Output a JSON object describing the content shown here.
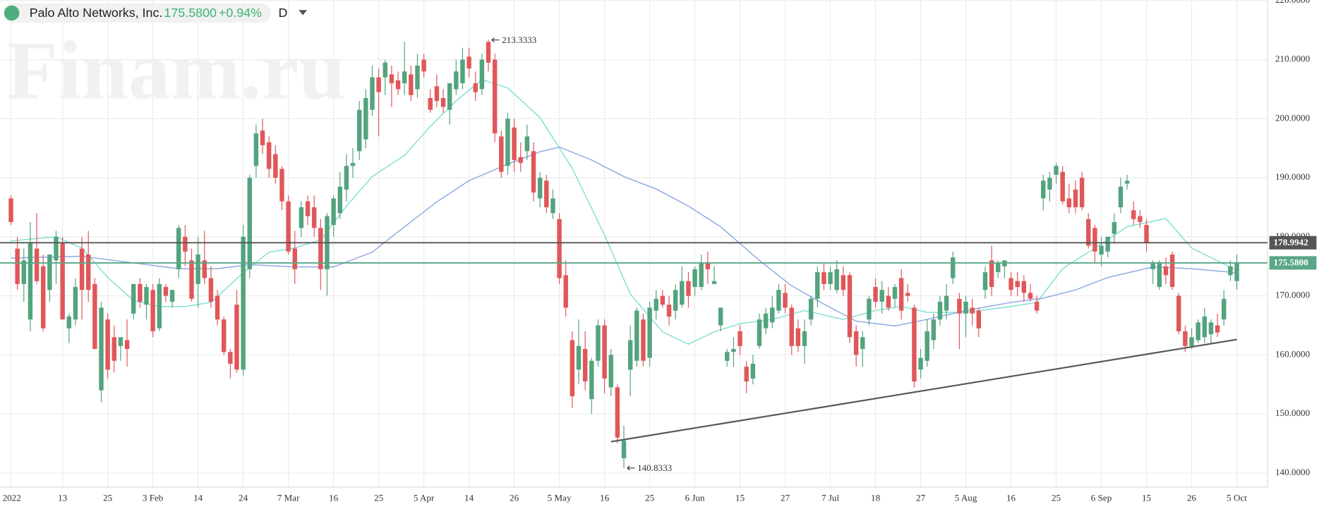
{
  "header": {
    "instrument": "Palo Alto Networks, Inc.",
    "price": "175.5800",
    "change": "+0.94%",
    "interval": "D"
  },
  "watermark": "Finam.ru",
  "chart_data": {
    "type": "candlestick",
    "up_color": "#53a37e",
    "down_color": "#e0575a",
    "categories": [
      "2022",
      null,
      null,
      null,
      null,
      null,
      null,
      null,
      "13",
      null,
      null,
      null,
      null,
      null,
      null,
      "25",
      null,
      null,
      null,
      null,
      null,
      null,
      "3 Feb",
      null,
      null,
      null,
      null,
      null,
      null,
      "14",
      null,
      null,
      null,
      null,
      null,
      null,
      "24",
      null,
      null,
      null,
      null,
      null,
      null,
      "7 Mar",
      null,
      null,
      null,
      null,
      null,
      null,
      "16",
      null,
      null,
      null,
      null,
      null,
      null,
      "25",
      null,
      null,
      null,
      null,
      null,
      null,
      "5 Apr",
      null,
      null,
      null,
      null,
      null,
      null,
      "14",
      null,
      null,
      null,
      null,
      null,
      null,
      "26",
      null,
      null,
      null,
      null,
      null,
      null,
      "5 May",
      null,
      null,
      null,
      null,
      null,
      null,
      "16",
      null,
      null,
      null,
      null,
      null,
      null,
      "25",
      null,
      null,
      null,
      null,
      null,
      null,
      "6 Jun",
      null,
      null,
      null,
      null,
      null,
      null,
      "15",
      null,
      null,
      null,
      null,
      null,
      null,
      "27",
      null,
      null,
      null,
      null,
      null,
      null,
      "7 Jul",
      null,
      null,
      null,
      null,
      null,
      null,
      "18",
      null,
      null,
      null,
      null,
      null,
      null,
      "27",
      null,
      null,
      null,
      null,
      null,
      null,
      "5 Aug",
      null,
      null,
      null,
      null,
      null,
      null,
      "16",
      null,
      null,
      null,
      null,
      null,
      null,
      "25",
      null,
      null,
      null,
      null,
      null,
      null,
      "6 Sep",
      null,
      null,
      null,
      null,
      null,
      null,
      "15",
      null,
      null,
      null,
      null,
      null,
      null,
      "26",
      null,
      null,
      null,
      null,
      null,
      null,
      "5 Oct"
    ],
    "open": [
      186.5,
      178,
      172,
      166,
      178,
      175,
      171,
      176,
      179,
      164.5,
      166,
      178,
      177,
      172,
      154,
      166,
      163,
      161.5,
      162.5,
      167,
      172,
      168.5,
      171,
      164.5,
      171.5,
      169,
      174.5,
      180,
      176,
      172,
      176,
      173,
      170,
      166,
      160.5,
      168.5,
      157.5,
      174.5,
      192,
      198,
      196,
      194,
      191.5,
      186,
      178,
      181.5,
      186,
      185,
      181.5,
      174.5,
      182,
      184,
      188,
      192,
      194.5,
      196.5,
      201.5,
      207,
      207,
      207.5,
      206.5,
      206,
      207.5,
      205,
      210,
      203.5,
      205.5,
      203.5,
      201.5,
      205,
      206,
      210.5,
      206,
      205,
      213,
      210,
      197,
      192,
      198.5,
      193.5,
      194.5,
      194.5,
      186.5,
      189.5,
      184,
      183,
      173.5,
      162.5,
      157.5,
      161,
      152.5,
      159,
      165,
      154.5,
      154.5,
      142.5,
      157.5,
      159,
      166,
      159.5,
      167.5,
      170,
      168.5,
      167.5,
      168.5,
      172.5,
      171.5,
      171.5,
      175.5,
      172,
      165,
      159,
      160.5,
      164,
      158,
      156,
      161.5,
      164.5,
      165.5,
      167.5,
      170.5,
      168,
      164.5,
      161.5,
      166,
      169.5,
      174,
      172,
      171,
      173.5,
      173.5,
      164,
      161,
      166,
      171.5,
      169,
      170,
      169.5,
      173,
      170.5,
      168,
      157.5,
      159,
      162.5,
      166,
      167.5,
      173,
      169.5,
      167,
      168,
      167.5,
      171,
      176,
      174,
      175,
      173,
      172.5,
      172.5,
      170.5,
      169,
      186.5,
      188,
      190.5,
      191,
      186.5,
      188,
      190,
      183,
      181.5,
      177,
      177.5,
      180.5,
      185,
      189,
      184.5,
      183.5,
      182,
      174.5,
      171.5,
      175,
      177,
      170,
      164,
      161.5,
      162.5,
      163,
      163.5,
      165,
      166,
      173.5,
      172.5
    ],
    "high": [
      187,
      180,
      178,
      182.5,
      184,
      177,
      177,
      181,
      180,
      167,
      173,
      180,
      181,
      173,
      169,
      167,
      165,
      163,
      166,
      172,
      173,
      172,
      172,
      173,
      172,
      171,
      182,
      182,
      178,
      180,
      181,
      175,
      171,
      166.5,
      161,
      171,
      182,
      190.5,
      199,
      200,
      197,
      195.5,
      192,
      187,
      181,
      186,
      187,
      187,
      183,
      184,
      187,
      191,
      194,
      195,
      203,
      205,
      209,
      208.5,
      210,
      209,
      208,
      213,
      209,
      211,
      211,
      205,
      207.5,
      205,
      206,
      210,
      212,
      212,
      208,
      211,
      213.3333,
      211,
      198,
      201,
      200,
      196,
      199,
      196,
      191,
      190.5,
      188,
      184,
      176,
      164,
      166,
      164,
      159.5,
      166,
      166,
      161,
      155,
      148,
      165,
      168,
      167,
      169,
      171,
      171,
      170,
      172,
      175,
      174,
      175,
      177,
      177.5,
      175,
      168,
      161,
      163,
      165,
      159,
      160,
      167,
      168,
      170,
      172,
      172,
      168.5,
      166,
      166,
      170,
      175,
      175.5,
      175,
      176,
      175,
      174,
      165,
      164,
      170,
      173,
      172.5,
      171.5,
      172,
      174.5,
      172,
      168.5,
      161,
      166,
      167,
      170,
      172,
      177.5,
      170.5,
      170,
      169.5,
      168,
      175,
      178.5,
      176,
      176,
      174,
      174,
      173.5,
      172,
      170,
      190.5,
      191,
      192.5,
      192,
      189,
      189.5,
      191,
      184,
      182,
      180,
      180,
      184,
      190,
      190.5,
      186,
      184.5,
      183,
      176,
      176,
      176.5,
      177.5,
      170.5,
      165,
      164.5,
      166,
      168,
      166,
      167,
      171,
      176,
      177
    ],
    "low": [
      182,
      171,
      169,
      164,
      172,
      164,
      169,
      172,
      166,
      162,
      165,
      166,
      169,
      161,
      152,
      156,
      157,
      159,
      158,
      166,
      168,
      166,
      163,
      164,
      169,
      168,
      173,
      175,
      169,
      168,
      172,
      168,
      165,
      160,
      156,
      157,
      156.5,
      173,
      190,
      194,
      190,
      189,
      184.5,
      177,
      172,
      180,
      182,
      180,
      171,
      170,
      180,
      183,
      186,
      190,
      193,
      195,
      200.5,
      197,
      204,
      202,
      204,
      204,
      203,
      203.5,
      207,
      201,
      202,
      201,
      199,
      204,
      205,
      207,
      203,
      204,
      208,
      196,
      190,
      190.5,
      191,
      191,
      193,
      186,
      185,
      184,
      183,
      172,
      166.5,
      151,
      155,
      154,
      150,
      158,
      153.5,
      153,
      145,
      140.8333,
      153,
      158,
      158,
      158,
      166,
      168,
      165,
      166,
      168,
      168,
      170,
      171,
      172,
      172,
      164,
      158,
      158,
      160,
      153.5,
      155,
      161,
      163.5,
      164.5,
      167,
      167,
      160,
      160.5,
      158.5,
      165,
      168,
      171,
      171,
      170.5,
      170,
      162,
      158,
      158,
      165,
      168,
      167,
      167.5,
      168,
      166,
      169,
      154.5,
      156,
      158,
      161,
      165,
      166,
      172,
      161,
      163,
      165,
      163,
      169.5,
      170,
      173,
      173,
      170,
      170,
      169,
      169,
      167,
      184.5,
      186,
      189,
      185.5,
      184,
      184,
      184.5,
      178,
      175.5,
      175,
      176.5,
      179,
      184,
      188,
      182,
      181.5,
      177.5,
      172,
      171,
      172,
      171,
      163.5,
      160.5,
      161,
      162,
      162,
      162,
      163,
      165,
      172.5,
      171
    ],
    "close": [
      182.5,
      172,
      176,
      179,
      172.5,
      164.5,
      177,
      180,
      166,
      166.5,
      171.5,
      171,
      171,
      161,
      168,
      157.5,
      159,
      163,
      161,
      172,
      169,
      171.5,
      164,
      172,
      170,
      171,
      181.5,
      177.5,
      169.5,
      177,
      173,
      169,
      166,
      160.5,
      158.5,
      157.5,
      180,
      190,
      197.5,
      195.5,
      191.5,
      190,
      186,
      177.5,
      174.5,
      185,
      183.5,
      181.5,
      174.5,
      183.5,
      186.5,
      188.5,
      192,
      192.5,
      201.5,
      203.5,
      207,
      204.5,
      209.5,
      206,
      205,
      208,
      204,
      209,
      208,
      201.5,
      203,
      202,
      206,
      208,
      210,
      208.5,
      204.5,
      210,
      209.5,
      197.5,
      191,
      200,
      193,
      192.5,
      197,
      187.5,
      190,
      185,
      186.5,
      173,
      168,
      153,
      161.5,
      155.5,
      159,
      165,
      156,
      160,
      146,
      145.5,
      162.5,
      167.5,
      159,
      168,
      169.5,
      168.5,
      166.5,
      171,
      172.5,
      170,
      174.5,
      175.5,
      174.5,
      172.5,
      168,
      160.5,
      161,
      161.5,
      155.5,
      158.5,
      166,
      167,
      168,
      171,
      168,
      161.5,
      161.5,
      164,
      169.5,
      174,
      172,
      174,
      174.5,
      171,
      163,
      160,
      163,
      169.5,
      169,
      171,
      168,
      171.5,
      167.5,
      170,
      155.5,
      159.5,
      164,
      166,
      169,
      170,
      176.5,
      167,
      169,
      167,
      164.5,
      174,
      171.5,
      175.5,
      176,
      171,
      171.5,
      170.5,
      169.5,
      167.5,
      189.5,
      190,
      192,
      186,
      185,
      185,
      185,
      178.5,
      177.5,
      178.5,
      180,
      182.5,
      188.5,
      189.5,
      183,
      182.5,
      179,
      175.5,
      175.5,
      173.5,
      171.5,
      164,
      161.5,
      163,
      165.5,
      166.5,
      165.5,
      163.8,
      169.5,
      175,
      175.58
    ],
    "moving_averages": [
      {
        "color": "#7fdfd0",
        "x": [
          0,
          7,
          11,
          15,
          19,
          23,
          27,
          31,
          36,
          40,
          44,
          48,
          52,
          56,
          61,
          65,
          69,
          73,
          77,
          82,
          87,
          92,
          96,
          101,
          105,
          109,
          113,
          118,
          123,
          129,
          134,
          138,
          142,
          148,
          155,
          159,
          163,
          168,
          173,
          179,
          183,
          190
        ],
        "values": [
          179.3,
          180.0,
          178.1,
          173.1,
          169.2,
          168.2,
          168.2,
          168.9,
          173.9,
          177.4,
          178.1,
          179.5,
          185.2,
          190.2,
          193.8,
          198.7,
          203.0,
          206.6,
          205.2,
          200.2,
          191.6,
          180.3,
          170.3,
          163.9,
          161.8,
          163.9,
          165.3,
          166.0,
          167.5,
          166.0,
          167.5,
          168.2,
          167.2,
          167.2,
          168.2,
          168.9,
          174.6,
          178.1,
          181.7,
          183.1,
          178.1,
          174.3
        ]
      },
      {
        "color": "#8aa9e0",
        "x": [
          0,
          11,
          18,
          26,
          32,
          37,
          44,
          50,
          56,
          61,
          66,
          71,
          77,
          82,
          85,
          90,
          95,
          100,
          105,
          110,
          116,
          121,
          126,
          131,
          137,
          142,
          148,
          155,
          160,
          165,
          170,
          177,
          183,
          190
        ],
        "values": [
          176.4,
          176.7,
          175.7,
          174.6,
          174.6,
          175.3,
          174.9,
          174.9,
          177.4,
          181.7,
          185.9,
          189.5,
          192.3,
          194.4,
          195.2,
          193.0,
          190.2,
          188.1,
          185.2,
          181.7,
          176.0,
          171.7,
          168.6,
          165.7,
          164.9,
          166.0,
          167.5,
          168.9,
          169.6,
          171.0,
          173.1,
          174.9,
          174.6,
          173.9
        ]
      }
    ],
    "trendline": {
      "color": "#555555",
      "x": [
        93,
        190
      ],
      "values": [
        145.3,
        162.6
      ]
    },
    "price_lines": [
      {
        "value": 178.9942,
        "color": "#555555"
      },
      {
        "value": {
          "value": 175.58,
          "label": "175.5800"
        },
        "color": "#5aa787"
      }
    ],
    "annotations": [
      {
        "x": 74,
        "value": 213.3333
      },
      {
        "x": 95,
        "value": 140.8333
      }
    ],
    "ylim": [
      137.6,
      220.1
    ],
    "yticks": [
      {
        "value": 140,
        "label": "140.0000"
      },
      {
        "value": 150,
        "label": "150.0000"
      },
      {
        "value": 160,
        "label": "160.0000"
      },
      {
        "value": 170,
        "label": "170.0000"
      },
      {
        "value": 180,
        "label": "180.0000"
      },
      {
        "value": 190,
        "label": "190.0000"
      },
      {
        "value": 200,
        "label": "200.0000"
      },
      {
        "value": 210,
        "label": "210.0000"
      },
      {
        "value": 220,
        "label": "220.0000"
      }
    ],
    "grid": true
  }
}
